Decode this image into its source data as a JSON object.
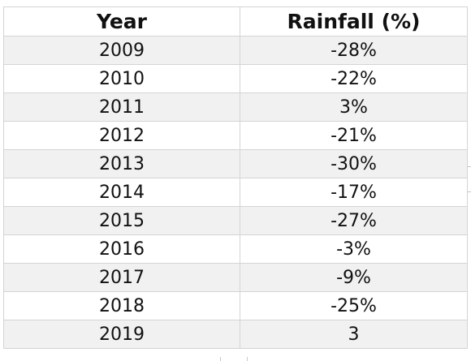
{
  "table": {
    "headers": {
      "year": "Year",
      "rainfall": "Rainfall (%)"
    },
    "rows": [
      {
        "year": "2009",
        "rainfall": "-28%"
      },
      {
        "year": "2010",
        "rainfall": "-22%"
      },
      {
        "year": "2011",
        "rainfall": "3%"
      },
      {
        "year": "2012",
        "rainfall": "-21%"
      },
      {
        "year": "2013",
        "rainfall": "-30%"
      },
      {
        "year": "2014",
        "rainfall": "-17%"
      },
      {
        "year": "2015",
        "rainfall": "-27%"
      },
      {
        "year": "2016",
        "rainfall": "-3%"
      },
      {
        "year": "2017",
        "rainfall": "-9%"
      },
      {
        "year": "2018",
        "rainfall": "-25%"
      },
      {
        "year": "2019",
        "rainfall": "3"
      }
    ]
  },
  "colors": {
    "grid_line": "#d4d4d4",
    "row_band": "#f1f1f1",
    "text": "#111111"
  }
}
